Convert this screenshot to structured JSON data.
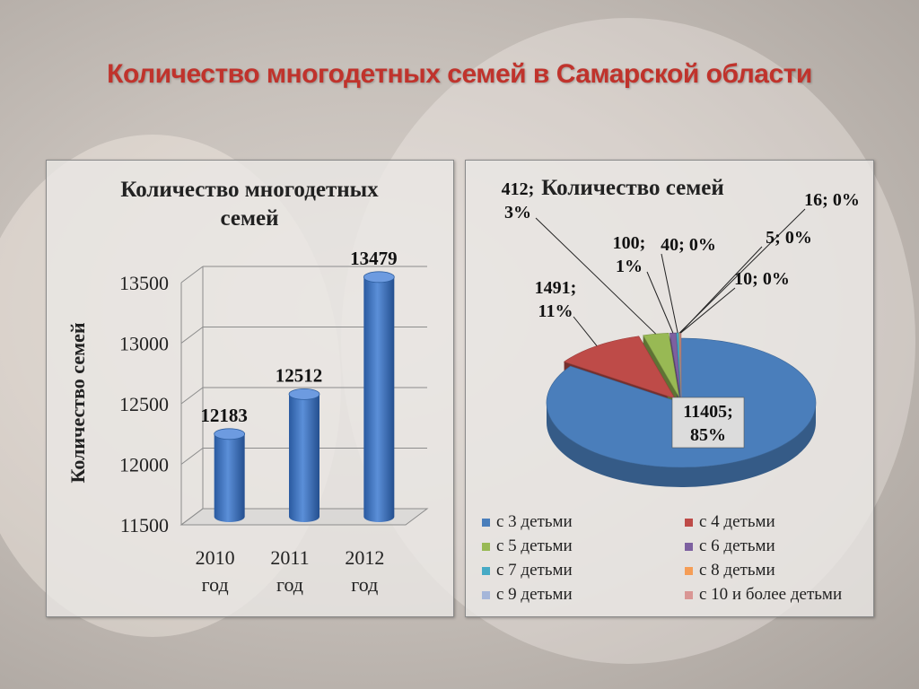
{
  "slide": {
    "title": "Количество многодетных семей в Самарской области"
  },
  "chart_data": [
    {
      "type": "bar",
      "title_lines": [
        "Количество многодетных",
        "семей"
      ],
      "ylabel": "Количество семей",
      "categories": [
        [
          "2010",
          "год"
        ],
        [
          "2011",
          "год"
        ],
        [
          "2012",
          "год"
        ]
      ],
      "values": [
        12183,
        12512,
        13479
      ],
      "data_labels": [
        "12183",
        "12512",
        "13479"
      ],
      "yticks": [
        "11500",
        "12000",
        "12500",
        "13000",
        "13500"
      ],
      "ylim": [
        11500,
        13500
      ],
      "grid": true,
      "color": "#3e74c2"
    },
    {
      "type": "pie",
      "title": "Количество семей",
      "slices": [
        {
          "legend": "с 3 детьми",
          "value": 11405,
          "label": [
            "11405;",
            "85%"
          ],
          "color": "#4a7ebb"
        },
        {
          "legend": "с 4 детьми",
          "value": 1491,
          "label": [
            "1491;",
            "11%"
          ],
          "color": "#be4b48"
        },
        {
          "legend": "с 5 детьми",
          "value": 412,
          "label": [
            "412;",
            "3%"
          ],
          "color": "#98b954"
        },
        {
          "legend": "с 6 детьми",
          "value": 100,
          "label": [
            "100;",
            "1%"
          ],
          "color": "#7d60a0"
        },
        {
          "legend": "с 7 детьми",
          "value": 40,
          "label": [
            "40; 0%"
          ],
          "color": "#46aac5"
        },
        {
          "legend": "с 8 детьми",
          "value": 16,
          "label": [
            "16; 0%"
          ],
          "color": "#f59d56"
        },
        {
          "legend": "с 9 детьми",
          "value": 5,
          "label": [
            "5; 0%"
          ],
          "color": "#a5b6d9"
        },
        {
          "legend": "с 10 и более детьми",
          "value": 10,
          "label": [
            "10; 0%"
          ],
          "color": "#d99694"
        }
      ],
      "legend_position": "bottom"
    }
  ]
}
